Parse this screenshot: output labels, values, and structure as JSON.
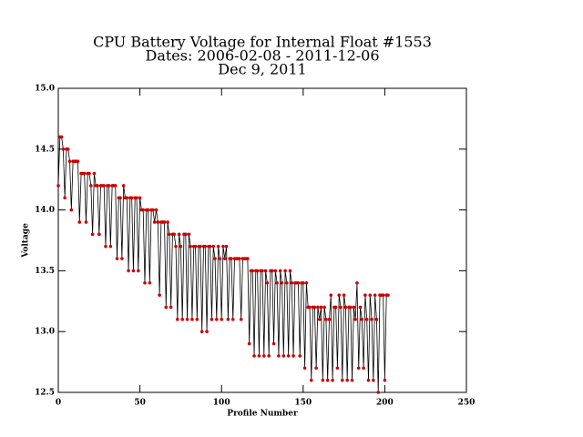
{
  "chart_data": {
    "type": "line",
    "title": [
      "CPU Battery Voltage for Internal Float #1553",
      "Dates:  2006-02-08 -  2011-12-06",
      "Dec  9, 2011"
    ],
    "x_label": "Profile Number",
    "y_label": "Voltage",
    "xlim": [
      0,
      250
    ],
    "ylim": [
      12.5,
      15
    ],
    "xticks": [
      0,
      50,
      100,
      150,
      200,
      250
    ],
    "yticks": [
      12.5,
      {
        "value": 13,
        "label": "13.0"
      },
      13.5,
      {
        "value": 14,
        "label": "14.0"
      },
      14.5,
      {
        "value": 15,
        "label": "15.0"
      }
    ],
    "line_color": "#000000",
    "marker_color": "#cc0000",
    "x": [
      0,
      1,
      2,
      3,
      4,
      5,
      6,
      7,
      8,
      9,
      10,
      11,
      12,
      13,
      14,
      15,
      16,
      17,
      18,
      19,
      20,
      21,
      22,
      23,
      24,
      25,
      26,
      27,
      28,
      29,
      30,
      31,
      32,
      33,
      34,
      35,
      36,
      37,
      38,
      39,
      40,
      41,
      42,
      43,
      44,
      45,
      46,
      47,
      48,
      49,
      50,
      51,
      52,
      53,
      54,
      55,
      56,
      57,
      58,
      59,
      60,
      61,
      62,
      63,
      64,
      65,
      66,
      67,
      68,
      69,
      70,
      71,
      72,
      73,
      74,
      75,
      76,
      77,
      78,
      79,
      80,
      81,
      82,
      83,
      84,
      85,
      86,
      87,
      88,
      89,
      90,
      91,
      92,
      93,
      94,
      95,
      96,
      97,
      98,
      99,
      100,
      101,
      102,
      103,
      104,
      105,
      106,
      107,
      108,
      109,
      110,
      111,
      112,
      113,
      114,
      115,
      116,
      117,
      118,
      119,
      120,
      121,
      122,
      123,
      124,
      125,
      126,
      127,
      128,
      129,
      130,
      131,
      132,
      133,
      134,
      135,
      136,
      137,
      138,
      139,
      140,
      141,
      142,
      143,
      144,
      145,
      146,
      147,
      148,
      149,
      150,
      151,
      152,
      153,
      154,
      155,
      156,
      157,
      158,
      159,
      160,
      161,
      162,
      163,
      164,
      165,
      166,
      167,
      168,
      169,
      170,
      171,
      172,
      173,
      174,
      175,
      176,
      177,
      178,
      179,
      180,
      181,
      182,
      183,
      184,
      185,
      186,
      187,
      188,
      189,
      190,
      191,
      192,
      193,
      194,
      195,
      196,
      197,
      198,
      199,
      200,
      201,
      202
    ],
    "values": [
      14.2,
      14.6,
      14.6,
      14.5,
      14.1,
      14.5,
      14.5,
      14.4,
      14.0,
      14.4,
      14.4,
      14.4,
      14.4,
      13.9,
      14.3,
      14.3,
      14.3,
      13.9,
      14.3,
      14.3,
      14.2,
      13.8,
      14.3,
      14.2,
      14.2,
      13.8,
      14.2,
      14.2,
      14.2,
      13.7,
      14.2,
      14.2,
      13.7,
      14.2,
      14.2,
      14.2,
      13.6,
      14.1,
      14.1,
      13.6,
      14.2,
      14.1,
      14.1,
      13.5,
      14.1,
      14.1,
      13.5,
      14.1,
      14.1,
      13.5,
      14.1,
      14.0,
      14.0,
      13.4,
      14.0,
      14.0,
      13.4,
      14.0,
      14.0,
      13.9,
      14.0,
      13.9,
      13.3,
      13.9,
      13.9,
      13.9,
      13.2,
      13.9,
      13.8,
      13.2,
      13.8,
      13.8,
      13.7,
      13.1,
      13.8,
      13.7,
      13.1,
      13.8,
      13.8,
      13.1,
      13.8,
      13.7,
      13.1,
      13.7,
      13.7,
      13.1,
      13.7,
      13.7,
      13.0,
      13.7,
      13.7,
      13.0,
      13.7,
      13.7,
      13.1,
      13.7,
      13.6,
      13.1,
      13.7,
      13.6,
      13.1,
      13.7,
      13.6,
      13.7,
      13.1,
      13.6,
      13.6,
      13.1,
      13.6,
      13.6,
      13.6,
      13.6,
      13.1,
      13.6,
      13.6,
      13.6,
      13.6,
      12.9,
      13.5,
      13.5,
      12.8,
      13.5,
      13.5,
      12.8,
      13.5,
      13.5,
      12.8,
      13.5,
      13.4,
      12.8,
      13.5,
      13.5,
      12.9,
      13.5,
      13.4,
      12.8,
      13.5,
      13.4,
      12.8,
      13.5,
      13.4,
      12.8,
      13.5,
      13.4,
      12.8,
      13.4,
      13.4,
      13.4,
      12.8,
      13.4,
      13.4,
      12.7,
      13.4,
      13.2,
      13.2,
      12.6,
      13.2,
      13.2,
      12.7,
      13.2,
      13.1,
      13.2,
      12.6,
      13.2,
      13.1,
      12.6,
      13.1,
      13.3,
      12.6,
      13.2,
      13.2,
      12.7,
      13.3,
      13.2,
      12.6,
      13.3,
      13.2,
      12.6,
      13.2,
      13.2,
      12.6,
      13.2,
      13.1,
      13.4,
      12.7,
      13.2,
      13.1,
      12.7,
      13.3,
      13.1,
      12.6,
      13.3,
      13.1,
      12.6,
      13.3,
      13.1,
      12.5,
      13.3,
      13.3,
      13.3,
      12.6,
      13.3,
      13.3
    ]
  }
}
